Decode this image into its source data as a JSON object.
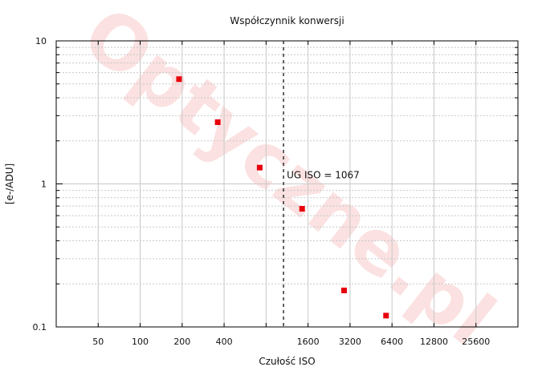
{
  "chart_data": {
    "type": "scatter",
    "title": "Współczynnik konwersji",
    "xlabel": "Czułość ISO",
    "ylabel": "[e-/ADU]",
    "x_scale": "log2",
    "y_scale": "log10",
    "xlim": [
      25,
      51200
    ],
    "ylim": [
      0.1,
      10
    ],
    "x_ticks": [
      50,
      100,
      200,
      400,
      800,
      1600,
      3200,
      6400,
      12800,
      25600
    ],
    "x_tick_labels": [
      "50",
      "100",
      "200",
      "400",
      "",
      "1600",
      "3200",
      "6400",
      "12800",
      "25600"
    ],
    "y_tick_labels": [
      {
        "value": 10,
        "label": "10"
      },
      {
        "value": 1,
        "label": "1"
      },
      {
        "value": 0.1,
        "label": "0.1"
      }
    ],
    "grid": true,
    "series": [
      {
        "color": "#e8000b",
        "marker": "square",
        "points": [
          {
            "x": 190,
            "y": 5.4
          },
          {
            "x": 360,
            "y": 2.7
          },
          {
            "x": 720,
            "y": 1.3
          },
          {
            "x": 1450,
            "y": 0.67
          },
          {
            "x": 2900,
            "y": 0.18
          },
          {
            "x": 5800,
            "y": 0.12
          }
        ]
      }
    ],
    "annotations": [
      {
        "type": "vline",
        "x": 1067,
        "style": "dashed",
        "label": "UG ISO = 1067",
        "label_y": 1.15
      }
    ],
    "watermark": "Optyczne.pl",
    "colors": {
      "grid": "#c8c8c8",
      "axis": "#000000",
      "marker": "#e8000b",
      "watermark": "#f7c8c8"
    }
  }
}
